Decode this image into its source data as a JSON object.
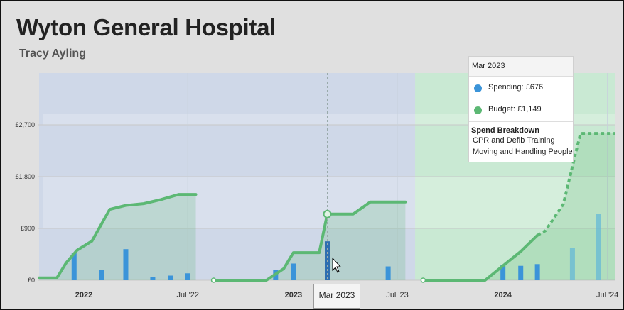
{
  "title": "Wyton General Hospital",
  "subtitle": "Tracy Ayling",
  "tooltip": {
    "header": "Mar 2023",
    "spending_label": "Spending: £676",
    "budget_label": "Budget: £1,149",
    "breakdown_title": "Spend Breakdown",
    "breakdown_items": [
      "CPR and Defib Training",
      "Moving and Handling People"
    ],
    "spending_color": "#3b94d9",
    "budget_color": "#5cb874"
  },
  "crosshair_label": "Mar 2023",
  "chart_data": {
    "type": "bar",
    "ylim": [
      0,
      3600
    ],
    "y_ticks": [
      {
        "value": 0,
        "label": "£0"
      },
      {
        "value": 900,
        "label": "£900"
      },
      {
        "value": 1800,
        "label": "£1,800"
      },
      {
        "value": 2700,
        "label": "£2,700"
      }
    ],
    "x_ticks": [
      {
        "date": "2022-01-01",
        "label": "2022",
        "bold": true
      },
      {
        "date": "2022-07-01",
        "label": "Jul '22",
        "bold": false
      },
      {
        "date": "2023-01-01",
        "label": "2023",
        "bold": true
      },
      {
        "date": "2023-07-01",
        "label": "Jul '23",
        "bold": false
      },
      {
        "date": "2024-01-01",
        "label": "2024",
        "bold": true
      },
      {
        "date": "2024-07-01",
        "label": "Jul '24",
        "bold": false
      }
    ],
    "xlim": [
      "2021-10-15",
      "2024-07-15"
    ],
    "periods": [
      {
        "start": "2021-10-15",
        "end": "2023-08-01",
        "color": "#cfd8e8"
      },
      {
        "start": "2023-08-01",
        "end": "2024-07-15",
        "color": "#c9e9d3"
      }
    ],
    "series": [
      {
        "name": "Spending",
        "color": "#3b94d9",
        "highlight": {
          "date": "2023-03-01",
          "color": "#2e6eb0"
        },
        "projected_from": "2024-04-01",
        "bars": [
          {
            "date": "2021-12-15",
            "value": 470
          },
          {
            "date": "2022-02-01",
            "value": 180
          },
          {
            "date": "2022-03-15",
            "value": 540
          },
          {
            "date": "2022-05-01",
            "value": 50
          },
          {
            "date": "2022-06-01",
            "value": 80
          },
          {
            "date": "2022-07-01",
            "value": 120
          },
          {
            "date": "2022-12-01",
            "value": 180
          },
          {
            "date": "2023-01-01",
            "value": 290
          },
          {
            "date": "2023-03-01",
            "value": 676
          },
          {
            "date": "2023-06-15",
            "value": 240
          },
          {
            "date": "2024-01-01",
            "value": 260
          },
          {
            "date": "2024-02-01",
            "value": 250
          },
          {
            "date": "2024-03-01",
            "value": 280
          },
          {
            "date": "2024-05-01",
            "value": 560
          },
          {
            "date": "2024-06-15",
            "value": 1150
          }
        ]
      },
      {
        "name": "Budget",
        "color": "#5cb874",
        "years": [
          {
            "points": [
              {
                "date": "2021-10-15",
                "value": 40
              },
              {
                "date": "2021-11-15",
                "value": 40
              },
              {
                "date": "2021-12-01",
                "value": 300
              },
              {
                "date": "2021-12-20",
                "value": 520
              },
              {
                "date": "2022-01-15",
                "value": 680
              },
              {
                "date": "2022-02-15",
                "value": 1230
              },
              {
                "date": "2022-03-15",
                "value": 1300
              },
              {
                "date": "2022-04-15",
                "value": 1330
              },
              {
                "date": "2022-05-15",
                "value": 1400
              },
              {
                "date": "2022-06-15",
                "value": 1490
              },
              {
                "date": "2022-07-15",
                "value": 1490
              }
            ]
          },
          {
            "points": [
              {
                "date": "2022-08-15",
                "value": 0
              },
              {
                "date": "2022-11-15",
                "value": 0
              },
              {
                "date": "2022-12-15",
                "value": 200
              },
              {
                "date": "2023-01-01",
                "value": 480
              },
              {
                "date": "2023-02-15",
                "value": 480
              },
              {
                "date": "2023-03-01",
                "value": 1149
              },
              {
                "date": "2023-04-15",
                "value": 1149
              },
              {
                "date": "2023-05-15",
                "value": 1360
              },
              {
                "date": "2023-07-15",
                "value": 1360
              }
            ]
          },
          {
            "points": [
              {
                "date": "2023-08-15",
                "value": 0
              },
              {
                "date": "2023-12-01",
                "value": 0
              },
              {
                "date": "2024-01-01",
                "value": 250
              },
              {
                "date": "2024-02-01",
                "value": 500
              },
              {
                "date": "2024-03-01",
                "value": 780
              }
            ],
            "projected": [
              {
                "date": "2024-03-15",
                "value": 860
              },
              {
                "date": "2024-04-15",
                "value": 1320
              },
              {
                "date": "2024-05-15",
                "value": 2550
              },
              {
                "date": "2024-07-15",
                "value": 2550
              }
            ]
          }
        ]
      }
    ],
    "highlight_date": "2023-03-01"
  }
}
